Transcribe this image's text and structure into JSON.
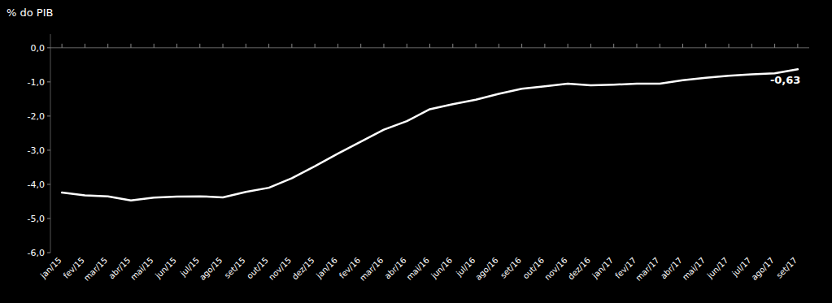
{
  "chart_data": {
    "type": "line",
    "ylabel": "% do PIB",
    "color": "#ffffff",
    "grid": false,
    "categories": [
      "jan/15",
      "fev/15",
      "mar/15",
      "abr/15",
      "mai/15",
      "jun/15",
      "jul/15",
      "ago/15",
      "set/15",
      "out/15",
      "nov/15",
      "dez/15",
      "jan/16",
      "fev/16",
      "mar/16",
      "abr/16",
      "mai/16",
      "jun/16",
      "jul/16",
      "ago/16",
      "set/16",
      "out/16",
      "nov/16",
      "dez/16",
      "jan/17",
      "fev/17",
      "mar/17",
      "abr/17",
      "mai/17",
      "jun/17",
      "jul/17",
      "ago/17",
      "set/17"
    ],
    "values": [
      -4.24,
      -4.32,
      -4.35,
      -4.47,
      -4.39,
      -4.36,
      -4.35,
      -4.38,
      -4.22,
      -4.1,
      -3.82,
      -3.47,
      -3.1,
      -2.75,
      -2.4,
      -2.15,
      -1.8,
      -1.65,
      -1.52,
      -1.35,
      -1.2,
      -1.13,
      -1.05,
      -1.1,
      -1.08,
      -1.05,
      -1.05,
      -0.95,
      -0.88,
      -0.82,
      -0.78,
      -0.75,
      -0.63
    ],
    "ylim": [
      -6.0,
      0.4
    ],
    "yticks": [
      {
        "value": 0.0,
        "label": "0,0"
      },
      {
        "value": -1.0,
        "label": "-1,0"
      },
      {
        "value": -2.0,
        "label": "-2,0"
      },
      {
        "value": -3.0,
        "label": "-3,0"
      },
      {
        "value": -4.0,
        "label": "-4,0"
      },
      {
        "value": -5.0,
        "label": "-5,0"
      },
      {
        "value": -6.0,
        "label": "-6,0"
      }
    ],
    "annotation": "-0,63"
  }
}
